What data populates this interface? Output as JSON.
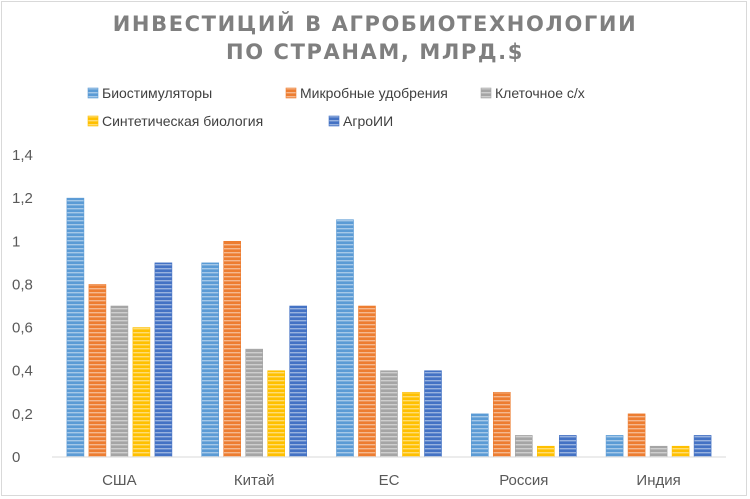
{
  "chart_data": {
    "type": "bar",
    "title_line1": "ИНВЕСТИЦИЙ В АГРОБИОТЕХНОЛОГИИ",
    "title_line2": "ПО СТРАНАМ, МЛРД.$",
    "categories": [
      "США",
      "Китай",
      "ЕС",
      "Россия",
      "Индия"
    ],
    "series": [
      {
        "name": "Биостимуляторы",
        "color": "#5b9bd5",
        "values": [
          1.2,
          0.9,
          1.1,
          0.2,
          0.1
        ]
      },
      {
        "name": "Микробные удобрения",
        "color": "#ed7d31",
        "values": [
          0.8,
          1.0,
          0.7,
          0.3,
          0.2
        ]
      },
      {
        "name": "Клеточное с/х",
        "color": "#a5a5a5",
        "values": [
          0.7,
          0.5,
          0.4,
          0.1,
          0.05
        ]
      },
      {
        "name": "Синтетическая биология",
        "color": "#ffc000",
        "values": [
          0.6,
          0.4,
          0.3,
          0.05,
          0.05
        ]
      },
      {
        "name": "АгроИИ",
        "color": "#4472c4",
        "values": [
          0.9,
          0.7,
          0.4,
          0.1,
          0.1
        ]
      }
    ],
    "yticks": [
      "0",
      "0,2",
      "0,4",
      "0,6",
      "0,8",
      "1",
      "1,2",
      "1,4"
    ],
    "ylim": [
      0,
      1.4
    ],
    "legend_position": "top",
    "grid": false,
    "bar_pattern": "horizontal-stripes"
  }
}
